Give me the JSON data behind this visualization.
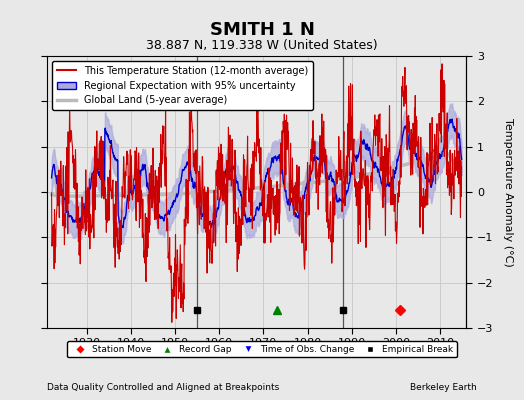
{
  "title": "SMITH 1 N",
  "subtitle": "38.887 N, 119.338 W (United States)",
  "ylabel": "Temperature Anomaly (°C)",
  "footer_left": "Data Quality Controlled and Aligned at Breakpoints",
  "footer_right": "Berkeley Earth",
  "xlim": [
    1921,
    2016
  ],
  "ylim": [
    -3,
    3
  ],
  "yticks": [
    -3,
    -2,
    -1,
    0,
    1,
    2,
    3
  ],
  "xticks": [
    1930,
    1940,
    1950,
    1960,
    1970,
    1980,
    1990,
    2000,
    2010
  ],
  "grid_color": "#cccccc",
  "bg_color": "#e8e8e8",
  "station_line_color": "#cc0000",
  "regional_line_color": "#0000cc",
  "regional_fill_color": "#aaaadd",
  "global_land_color": "#bbbbbb",
  "vline_color": "#555555",
  "vlines": [
    1955,
    1988
  ],
  "empirical_breaks": [
    1955,
    1988
  ],
  "record_gaps": [
    1973
  ],
  "station_moves": [
    2001
  ],
  "legend_labels": [
    "This Temperature Station (12-month average)",
    "Regional Expectation with 95% uncertainty",
    "Global Land (5-year average)"
  ],
  "legend_marker_labels": [
    "Station Move",
    "Record Gap",
    "Time of Obs. Change",
    "Empirical Break"
  ]
}
